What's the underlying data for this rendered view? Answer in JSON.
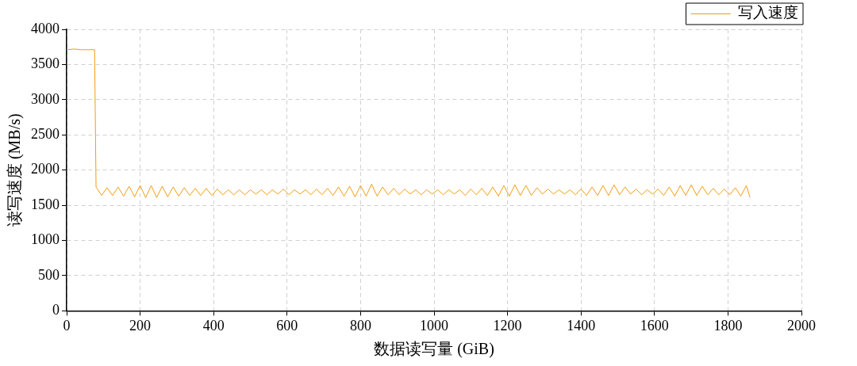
{
  "chart_data": {
    "type": "line",
    "xlabel": "数据读写量 (GiB)",
    "ylabel": "读写速度 (MB/s)",
    "xlim": [
      0,
      2000
    ],
    "xticks": [
      0,
      200,
      400,
      600,
      800,
      1000,
      1200,
      1400,
      1600,
      1800,
      2000
    ],
    "ylim": [
      0,
      4000
    ],
    "yticks": [
      0,
      500,
      1000,
      1500,
      2000,
      2500,
      3000,
      3500,
      4000
    ],
    "grid": true,
    "legend": "top right",
    "x": [
      0,
      20,
      40,
      60,
      76,
      80,
      95,
      110,
      125,
      140,
      155,
      170,
      185,
      200,
      215,
      230,
      245,
      260,
      275,
      290,
      305,
      320,
      335,
      350,
      365,
      380,
      395,
      410,
      425,
      440,
      455,
      470,
      485,
      500,
      515,
      530,
      545,
      560,
      575,
      590,
      605,
      620,
      635,
      650,
      665,
      680,
      695,
      710,
      725,
      740,
      755,
      770,
      785,
      800,
      815,
      830,
      845,
      860,
      875,
      890,
      905,
      920,
      935,
      950,
      965,
      980,
      995,
      1010,
      1025,
      1040,
      1055,
      1070,
      1085,
      1100,
      1115,
      1130,
      1145,
      1160,
      1175,
      1190,
      1205,
      1220,
      1235,
      1250,
      1265,
      1280,
      1295,
      1310,
      1325,
      1340,
      1355,
      1370,
      1385,
      1400,
      1415,
      1430,
      1445,
      1460,
      1475,
      1490,
      1505,
      1520,
      1535,
      1550,
      1565,
      1580,
      1595,
      1610,
      1625,
      1640,
      1655,
      1670,
      1685,
      1700,
      1715,
      1730,
      1745,
      1760,
      1775,
      1790,
      1805,
      1820,
      1835,
      1850,
      1860
    ],
    "series": [
      {
        "name": "写入速度",
        "color": "#f39c12",
        "values": [
          3710,
          3720,
          3710,
          3710,
          3710,
          1760,
          1640,
          1750,
          1640,
          1760,
          1630,
          1770,
          1620,
          1780,
          1610,
          1780,
          1610,
          1770,
          1620,
          1760,
          1630,
          1750,
          1640,
          1740,
          1640,
          1740,
          1640,
          1730,
          1650,
          1720,
          1650,
          1720,
          1650,
          1720,
          1660,
          1720,
          1650,
          1720,
          1660,
          1730,
          1650,
          1720,
          1660,
          1720,
          1650,
          1730,
          1650,
          1740,
          1640,
          1760,
          1630,
          1770,
          1620,
          1780,
          1630,
          1800,
          1630,
          1760,
          1650,
          1740,
          1650,
          1730,
          1660,
          1720,
          1650,
          1720,
          1660,
          1720,
          1650,
          1720,
          1660,
          1720,
          1640,
          1730,
          1650,
          1740,
          1640,
          1760,
          1630,
          1780,
          1630,
          1790,
          1640,
          1780,
          1640,
          1750,
          1660,
          1730,
          1660,
          1720,
          1660,
          1720,
          1650,
          1730,
          1640,
          1760,
          1640,
          1780,
          1640,
          1790,
          1650,
          1760,
          1660,
          1730,
          1650,
          1720,
          1660,
          1730,
          1640,
          1760,
          1630,
          1780,
          1640,
          1790,
          1640,
          1770,
          1650,
          1740,
          1650,
          1730,
          1650,
          1750,
          1630,
          1780,
          1610
        ]
      }
    ]
  }
}
